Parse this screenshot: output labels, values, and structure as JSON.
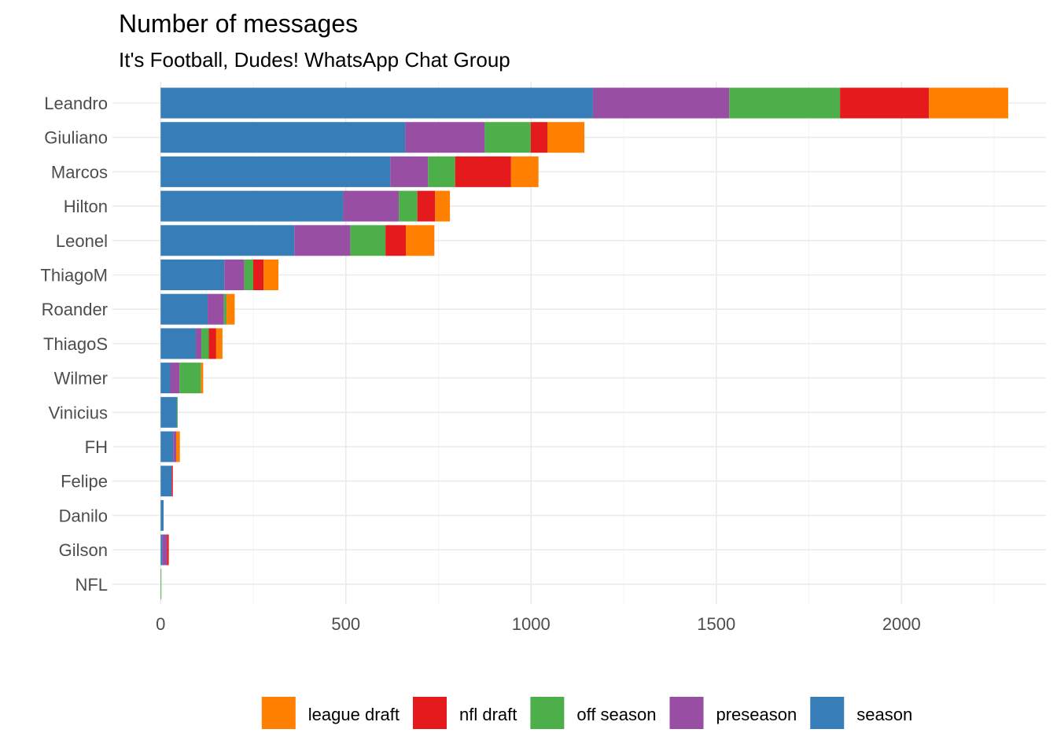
{
  "chart_data": {
    "type": "bar",
    "orientation": "horizontal",
    "stacked": true,
    "title": "Number of messages",
    "subtitle": "It's Football, Dudes! WhatsApp Chat Group",
    "xlabel": "",
    "ylabel": "",
    "xlim": [
      -130,
      2390
    ],
    "xticks": [
      0,
      500,
      1000,
      1500,
      2000
    ],
    "xtick_labels": [
      "0",
      "500",
      "1000",
      "1500",
      "2000"
    ],
    "grid": true,
    "legend_position": "bottom",
    "categories": [
      "Leandro",
      "Giuliano",
      "Marcos",
      "Hilton",
      "Leonel",
      "ThiagoM",
      "Roander",
      "ThiagoS",
      "Wilmer",
      "Vinicius",
      "FH",
      "Felipe",
      "Danilo",
      "Gilson",
      "NFL"
    ],
    "stack_order": [
      "season",
      "preseason",
      "off season",
      "nfl draft",
      "league draft"
    ],
    "series": [
      {
        "name": "season",
        "color": "#377EB8",
        "values": [
          1167,
          660,
          620,
          493,
          361,
          172,
          127,
          95,
          26,
          44,
          34,
          30,
          8,
          5,
          0
        ]
      },
      {
        "name": "preseason",
        "color": "#984EA3",
        "values": [
          368,
          215,
          102,
          150,
          151,
          54,
          44,
          15,
          25,
          0,
          8,
          0,
          0,
          12,
          0
        ]
      },
      {
        "name": "off season",
        "color": "#4DAF4A",
        "values": [
          299,
          124,
          73,
          50,
          95,
          24,
          7,
          20,
          58,
          2,
          0,
          0,
          0,
          0,
          2
        ]
      },
      {
        "name": "nfl draft",
        "color": "#E41A1C",
        "values": [
          240,
          45,
          151,
          48,
          55,
          28,
          0,
          20,
          0,
          0,
          0,
          3,
          0,
          5,
          0
        ]
      },
      {
        "name": "league draft",
        "color": "#FF7F00",
        "values": [
          214,
          100,
          74,
          40,
          77,
          40,
          22,
          17,
          6,
          0,
          10,
          0,
          0,
          0,
          0
        ]
      }
    ],
    "legend": [
      {
        "name": "league draft",
        "color": "#FF7F00"
      },
      {
        "name": "nfl draft",
        "color": "#E41A1C"
      },
      {
        "name": "off season",
        "color": "#4DAF4A"
      },
      {
        "name": "preseason",
        "color": "#984EA3"
      },
      {
        "name": "season",
        "color": "#377EB8"
      }
    ]
  }
}
